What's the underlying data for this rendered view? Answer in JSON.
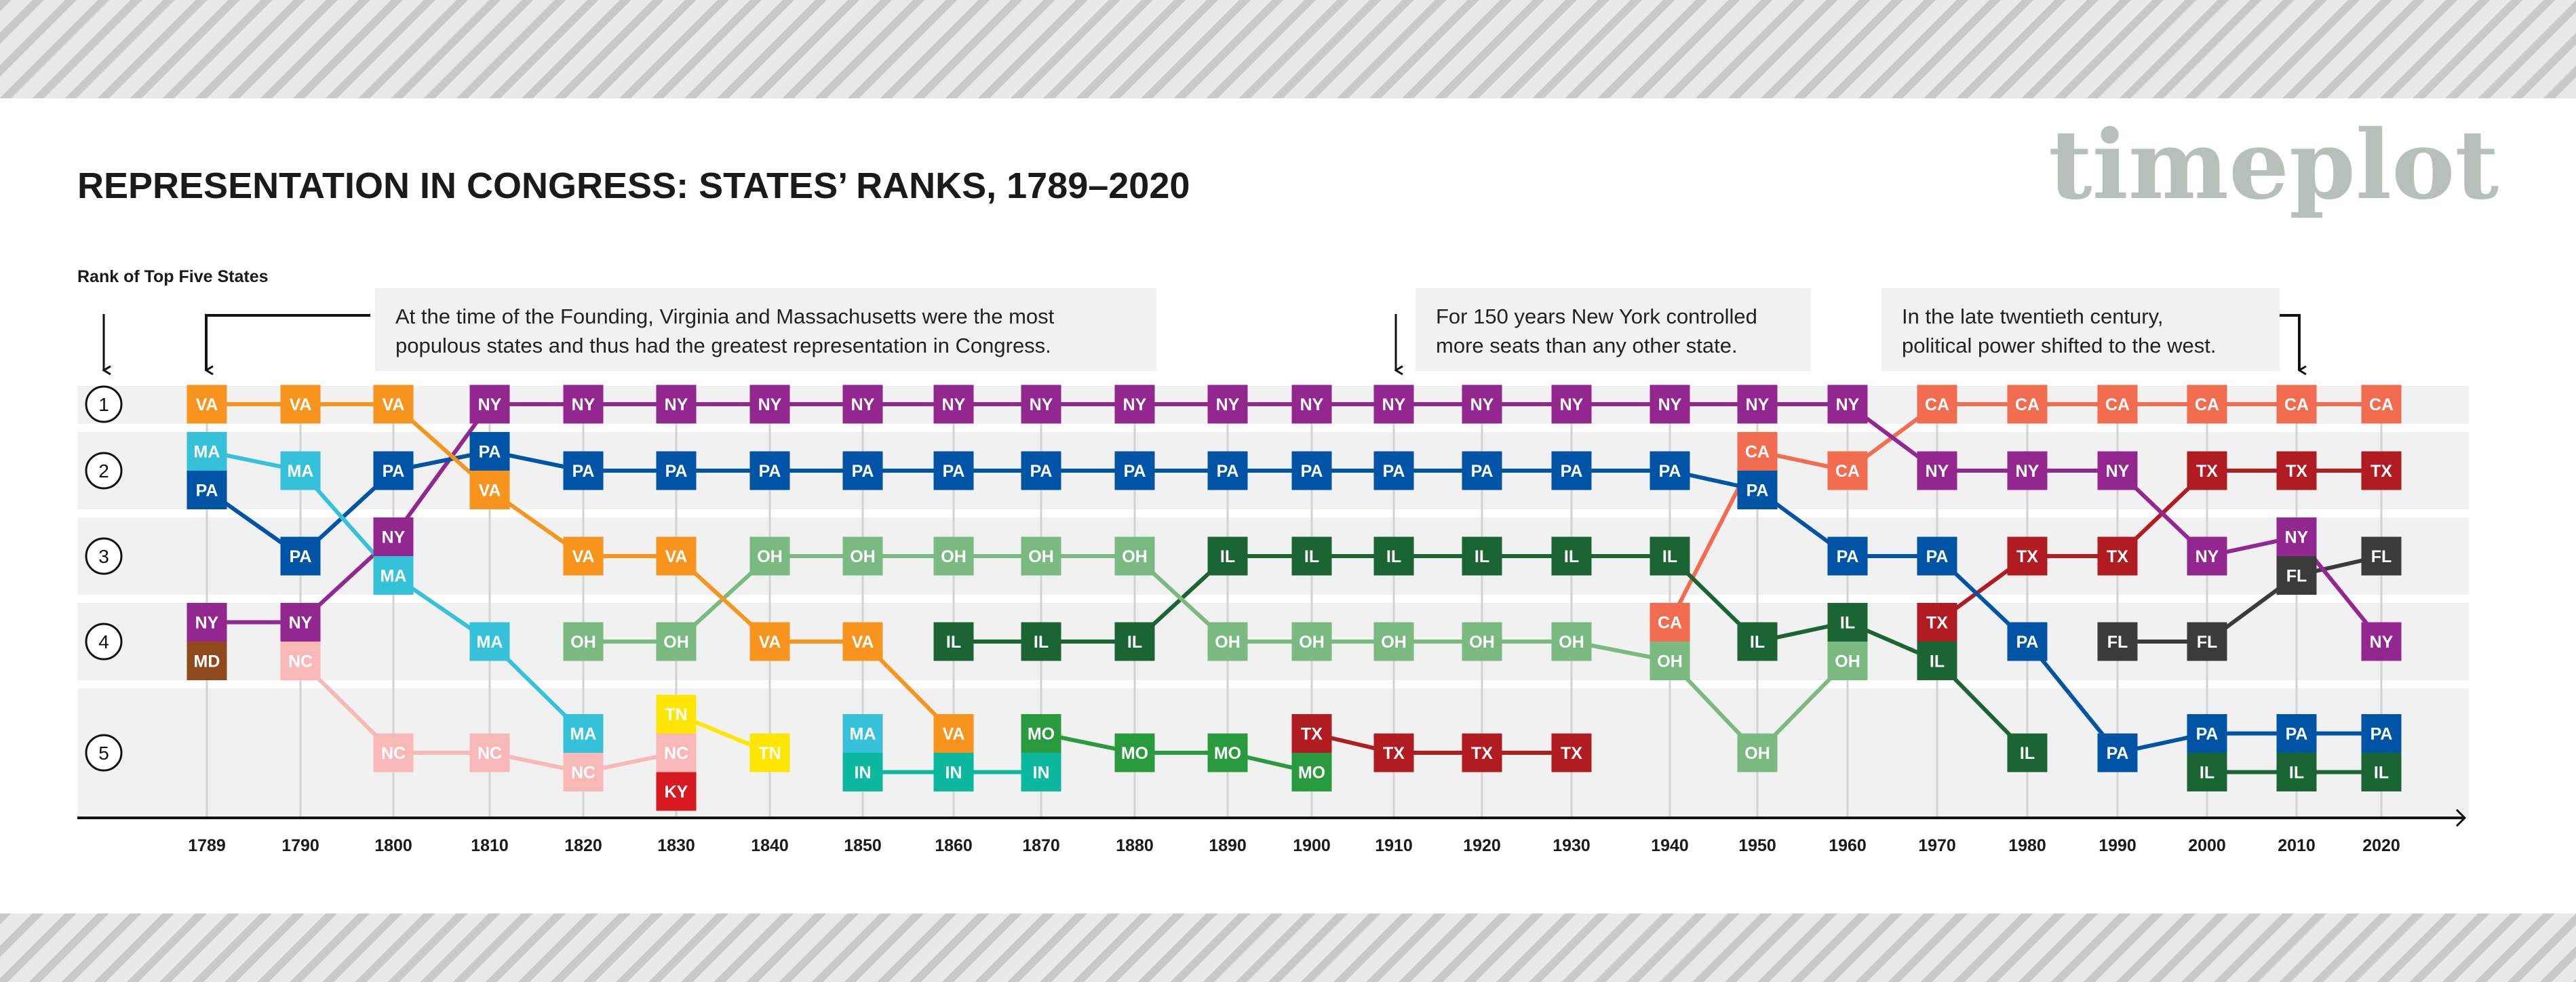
{
  "title": "REPRESENTATION IN CONGRESS: STATES’ RANKS, 1789–2020",
  "logo": "timeplot",
  "chart_data": {
    "type": "rank-chart",
    "ylabel": "Rank of Top Five States",
    "rank_labels": [
      "1",
      "2",
      "3",
      "4",
      "5"
    ],
    "annotations": [
      {
        "lines": [
          "At the time of the Founding, Virginia and Massachusetts were the most",
          "populous states and thus had the greatest representation in Congress."
        ]
      },
      {
        "lines": [
          "For 150 years New York controlled",
          "more seats than any other state."
        ]
      },
      {
        "lines": [
          "In the late twentieth century,",
          "political power shifted to the west."
        ]
      }
    ],
    "state_colors": {
      "VA": "#f7941d",
      "MA": "#36c1da",
      "PA": "#0054a6",
      "NY": "#92278f",
      "MD": "#8f4a1c",
      "NC": "#f8b8b8",
      "OH": "#7ab97f",
      "TN": "#ffe600",
      "KY": "#d71920",
      "IN": "#0bb89e",
      "IL": "#1b6535",
      "MO": "#2a9a3e",
      "TX": "#b01c22",
      "CA": "#f26c4f",
      "FL": "#3b3b3b"
    },
    "years": [
      {
        "year": "1789",
        "ranks": [
          [
            "VA"
          ],
          [
            "MA",
            "PA"
          ],
          [],
          [
            "NY",
            "MD"
          ],
          []
        ]
      },
      {
        "year": "1790",
        "ranks": [
          [
            "VA"
          ],
          [
            "MA"
          ],
          [
            "PA"
          ],
          [
            "NY",
            "NC"
          ],
          []
        ]
      },
      {
        "year": "1800",
        "ranks": [
          [
            "VA"
          ],
          [
            "PA"
          ],
          [
            "NY",
            "MA"
          ],
          [],
          [
            "NC"
          ]
        ]
      },
      {
        "year": "1810",
        "ranks": [
          [
            "NY"
          ],
          [
            "PA",
            "VA"
          ],
          [],
          [
            "MA"
          ],
          [
            "NC"
          ]
        ]
      },
      {
        "year": "1820",
        "ranks": [
          [
            "NY"
          ],
          [
            "PA"
          ],
          [
            "VA"
          ],
          [
            "OH"
          ],
          [
            "MA",
            "NC"
          ]
        ]
      },
      {
        "year": "1830",
        "ranks": [
          [
            "NY"
          ],
          [
            "PA"
          ],
          [
            "VA"
          ],
          [
            "OH"
          ],
          [
            "TN",
            "NC",
            "KY"
          ]
        ]
      },
      {
        "year": "1840",
        "ranks": [
          [
            "NY"
          ],
          [
            "PA"
          ],
          [
            "OH"
          ],
          [
            "VA"
          ],
          [
            "TN"
          ]
        ]
      },
      {
        "year": "1850",
        "ranks": [
          [
            "NY"
          ],
          [
            "PA"
          ],
          [
            "OH"
          ],
          [
            "VA"
          ],
          [
            "MA",
            "IN"
          ]
        ]
      },
      {
        "year": "1860",
        "ranks": [
          [
            "NY"
          ],
          [
            "PA"
          ],
          [
            "OH"
          ],
          [
            "IL"
          ],
          [
            "VA",
            "IN"
          ]
        ]
      },
      {
        "year": "1870",
        "ranks": [
          [
            "NY"
          ],
          [
            "PA"
          ],
          [
            "OH"
          ],
          [
            "IL"
          ],
          [
            "MO",
            "IN"
          ]
        ]
      },
      {
        "year": "1880",
        "ranks": [
          [
            "NY"
          ],
          [
            "PA"
          ],
          [
            "OH"
          ],
          [
            "IL"
          ],
          [
            "MO"
          ]
        ]
      },
      {
        "year": "1890",
        "ranks": [
          [
            "NY"
          ],
          [
            "PA"
          ],
          [
            "IL"
          ],
          [
            "OH"
          ],
          [
            "MO"
          ]
        ]
      },
      {
        "year": "1900",
        "ranks": [
          [
            "NY"
          ],
          [
            "PA"
          ],
          [
            "IL"
          ],
          [
            "OH"
          ],
          [
            "TX",
            "MO"
          ]
        ]
      },
      {
        "year": "1910",
        "ranks": [
          [
            "NY"
          ],
          [
            "PA"
          ],
          [
            "IL"
          ],
          [
            "OH"
          ],
          [
            "TX"
          ]
        ]
      },
      {
        "year": "1920",
        "ranks": [
          [
            "NY"
          ],
          [
            "PA"
          ],
          [
            "IL"
          ],
          [
            "OH"
          ],
          [
            "TX"
          ]
        ]
      },
      {
        "year": "1930",
        "ranks": [
          [
            "NY"
          ],
          [
            "PA"
          ],
          [
            "IL"
          ],
          [
            "OH"
          ],
          [
            "TX"
          ]
        ]
      },
      {
        "year": "1940",
        "ranks": [
          [
            "NY"
          ],
          [
            "PA"
          ],
          [
            "IL"
          ],
          [
            "CA",
            "OH"
          ],
          []
        ]
      },
      {
        "year": "1950",
        "ranks": [
          [
            "NY"
          ],
          [
            "CA",
            "PA"
          ],
          [],
          [
            "IL"
          ],
          [
            "OH"
          ]
        ]
      },
      {
        "year": "1960",
        "ranks": [
          [
            "NY"
          ],
          [
            "CA"
          ],
          [
            "PA"
          ],
          [
            "IL",
            "OH"
          ],
          []
        ]
      },
      {
        "year": "1970",
        "ranks": [
          [
            "CA"
          ],
          [
            "NY"
          ],
          [
            "PA"
          ],
          [
            "TX",
            "IL"
          ],
          []
        ]
      },
      {
        "year": "1980",
        "ranks": [
          [
            "CA"
          ],
          [
            "NY"
          ],
          [
            "TX"
          ],
          [
            "PA"
          ],
          [
            "IL"
          ]
        ]
      },
      {
        "year": "1990",
        "ranks": [
          [
            "CA"
          ],
          [
            "NY"
          ],
          [
            "TX"
          ],
          [
            "FL"
          ],
          [
            "PA"
          ]
        ]
      },
      {
        "year": "2000",
        "ranks": [
          [
            "CA"
          ],
          [
            "TX"
          ],
          [
            "NY"
          ],
          [
            "FL"
          ],
          [
            "PA",
            "IL"
          ]
        ]
      },
      {
        "year": "2010",
        "ranks": [
          [
            "CA"
          ],
          [
            "TX"
          ],
          [
            "NY",
            "FL"
          ],
          [],
          [
            "PA",
            "IL"
          ]
        ]
      },
      {
        "year": "2020",
        "ranks": [
          [
            "CA"
          ],
          [
            "TX"
          ],
          [
            "FL"
          ],
          [
            "NY"
          ],
          [
            "PA",
            "IL"
          ]
        ]
      }
    ]
  }
}
